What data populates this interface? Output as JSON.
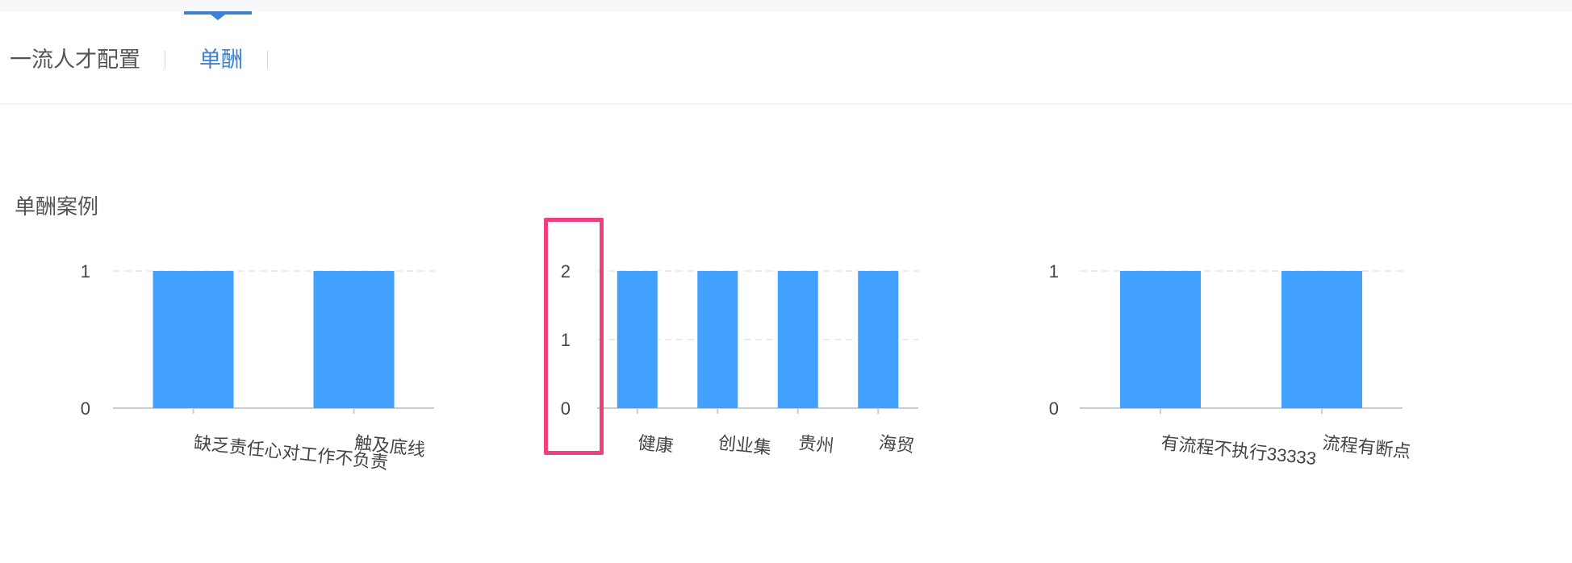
{
  "tabs": [
    {
      "label": "一流人才配置",
      "active": false
    },
    {
      "label": "单酬",
      "active": true
    }
  ],
  "section": {
    "title": "单酬案例"
  },
  "colors": {
    "accent": "#3d7fd0",
    "bar": "#42a0ff",
    "highlight": "#ee3f7e"
  },
  "chart_data": [
    {
      "type": "bar",
      "categories": [
        "缺乏责任心对工作不负责",
        "触及底线"
      ],
      "values": [
        1,
        1
      ],
      "yticks": [
        0,
        1
      ],
      "ylim": [
        0,
        1
      ],
      "grid": true
    },
    {
      "type": "bar",
      "categories": [
        "健康",
        "创业集",
        "贵州",
        "海贸"
      ],
      "values": [
        2,
        2,
        2,
        2
      ],
      "yticks": [
        0,
        1,
        2
      ],
      "ylim": [
        0,
        2
      ],
      "grid": true
    },
    {
      "type": "bar",
      "categories": [
        "有流程不执行33333",
        "流程有断点"
      ],
      "values": [
        1,
        1
      ],
      "yticks": [
        0,
        1
      ],
      "ylim": [
        0,
        1
      ],
      "grid": true
    }
  ]
}
